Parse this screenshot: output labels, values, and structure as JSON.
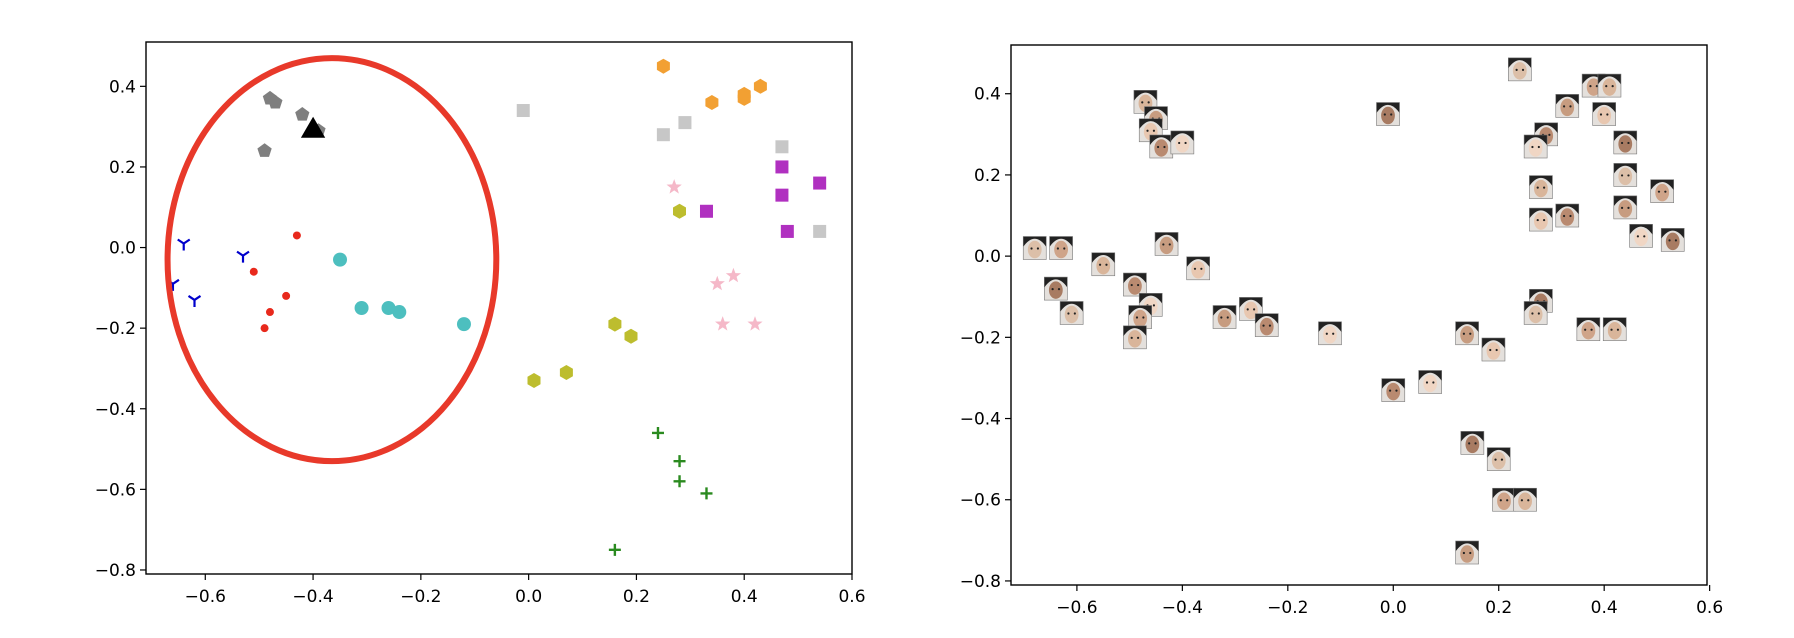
{
  "chart_data": [
    {
      "type": "scatter",
      "xlim": [
        -0.71,
        0.6
      ],
      "ylim": [
        -0.81,
        0.51
      ],
      "xticks": [
        -0.6,
        -0.4,
        -0.2,
        0.0,
        0.2,
        0.4,
        0.6
      ],
      "xtick_labels": [
        "−0.6",
        "−0.4",
        "−0.2",
        "0.0",
        "0.2",
        "0.4",
        "0.6"
      ],
      "yticks": [
        -0.8,
        -0.6,
        -0.4,
        -0.2,
        0.0,
        0.2,
        0.4
      ],
      "ytick_labels": [
        "−0.8",
        "−0.6",
        "−0.4",
        "−0.2",
        "0.0",
        "0.2",
        "0.4"
      ],
      "grid": false,
      "series": [
        {
          "marker": "pentagon",
          "color": "#7f7f7f",
          "points": [
            [
              -0.48,
              0.37
            ],
            [
              -0.47,
              0.36
            ],
            [
              -0.42,
              0.33
            ],
            [
              -0.49,
              0.24
            ],
            [
              -0.39,
              0.29
            ]
          ]
        },
        {
          "marker": "triangle",
          "color": "#000000",
          "points": [
            [
              -0.4,
              0.29
            ]
          ]
        },
        {
          "marker": "tri_down",
          "color": "#0000cc",
          "points": [
            [
              -0.64,
              0.01
            ],
            [
              -0.53,
              -0.02
            ],
            [
              -0.66,
              -0.09
            ],
            [
              -0.62,
              -0.13
            ]
          ]
        },
        {
          "marker": "dot",
          "color": "#e8291c",
          "points": [
            [
              -0.43,
              0.03
            ],
            [
              -0.51,
              -0.06
            ],
            [
              -0.45,
              -0.12
            ],
            [
              -0.48,
              -0.16
            ],
            [
              -0.49,
              -0.2
            ]
          ]
        },
        {
          "marker": "circle",
          "color": "#4dbfbf",
          "points": [
            [
              -0.35,
              -0.03
            ],
            [
              -0.31,
              -0.15
            ],
            [
              -0.26,
              -0.15
            ],
            [
              -0.24,
              -0.16
            ],
            [
              -0.12,
              -0.19
            ]
          ]
        },
        {
          "marker": "hexagon",
          "color": "#f2a033",
          "points": [
            [
              0.25,
              0.45
            ],
            [
              0.43,
              0.4
            ],
            [
              0.4,
              0.38
            ],
            [
              0.4,
              0.37
            ],
            [
              0.34,
              0.36
            ]
          ]
        },
        {
          "marker": "square",
          "color": "#c7c7c7",
          "points": [
            [
              -0.01,
              0.34
            ],
            [
              0.29,
              0.31
            ],
            [
              0.25,
              0.28
            ],
            [
              0.47,
              0.25
            ],
            [
              0.54,
              0.04
            ]
          ]
        },
        {
          "marker": "square",
          "color": "#b030c0",
          "points": [
            [
              0.47,
              0.2
            ],
            [
              0.54,
              0.16
            ],
            [
              0.47,
              0.13
            ],
            [
              0.33,
              0.09
            ],
            [
              0.48,
              0.04
            ]
          ]
        },
        {
          "marker": "star",
          "color": "#f5b8c8",
          "points": [
            [
              0.27,
              0.15
            ],
            [
              0.38,
              -0.07
            ],
            [
              0.35,
              -0.09
            ],
            [
              0.36,
              -0.19
            ],
            [
              0.42,
              -0.19
            ]
          ]
        },
        {
          "marker": "hexagon",
          "color": "#bdbd2e",
          "points": [
            [
              0.28,
              0.09
            ],
            [
              0.16,
              -0.19
            ],
            [
              0.19,
              -0.22
            ],
            [
              0.07,
              -0.31
            ],
            [
              0.01,
              -0.33
            ]
          ]
        },
        {
          "marker": "plus",
          "color": "#2a8a1f",
          "points": [
            [
              0.24,
              -0.46
            ],
            [
              0.28,
              -0.53
            ],
            [
              0.28,
              -0.58
            ],
            [
              0.33,
              -0.61
            ],
            [
              0.16,
              -0.75
            ]
          ]
        }
      ],
      "annotations": [
        {
          "type": "ellipse",
          "color": "#e8392a",
          "center": [
            -0.365,
            -0.03
          ],
          "half_width": 0.305,
          "half_height": 0.5
        }
      ]
    },
    {
      "type": "scatter",
      "xlim": [
        -0.725,
        0.595
      ],
      "ylim": [
        -0.81,
        0.52
      ],
      "xticks": [
        -0.6,
        -0.4,
        -0.2,
        0.0,
        0.2,
        0.4,
        0.6
      ],
      "xtick_labels": [
        "−0.6",
        "−0.4",
        "−0.2",
        "0.0",
        "0.2",
        "0.4",
        "0.6"
      ],
      "yticks": [
        -0.8,
        -0.6,
        -0.4,
        -0.2,
        0.0,
        0.2,
        0.4
      ],
      "ytick_labels": [
        "−0.8",
        "−0.6",
        "−0.4",
        "−0.2",
        "0.0",
        "0.2",
        "0.4"
      ],
      "grid": false,
      "marker": "face-thumbnail",
      "points": [
        [
          -0.47,
          0.38
        ],
        [
          -0.45,
          0.34
        ],
        [
          -0.46,
          0.31
        ],
        [
          -0.44,
          0.27
        ],
        [
          -0.4,
          0.28
        ],
        [
          -0.01,
          0.35
        ],
        [
          0.24,
          0.46
        ],
        [
          0.38,
          0.42
        ],
        [
          0.41,
          0.42
        ],
        [
          0.33,
          0.37
        ],
        [
          0.4,
          0.35
        ],
        [
          0.29,
          0.3
        ],
        [
          0.27,
          0.27
        ],
        [
          0.44,
          0.28
        ],
        [
          0.44,
          0.2
        ],
        [
          0.51,
          0.16
        ],
        [
          0.28,
          0.17
        ],
        [
          0.44,
          0.12
        ],
        [
          0.28,
          0.09
        ],
        [
          0.33,
          0.1
        ],
        [
          0.47,
          0.05
        ],
        [
          0.53,
          0.04
        ],
        [
          -0.68,
          0.02
        ],
        [
          -0.63,
          0.02
        ],
        [
          -0.55,
          -0.02
        ],
        [
          -0.43,
          0.03
        ],
        [
          -0.37,
          -0.03
        ],
        [
          -0.49,
          -0.07
        ],
        [
          -0.46,
          -0.12
        ],
        [
          -0.64,
          -0.08
        ],
        [
          -0.61,
          -0.14
        ],
        [
          -0.48,
          -0.15
        ],
        [
          -0.49,
          -0.2
        ],
        [
          -0.32,
          -0.15
        ],
        [
          -0.27,
          -0.13
        ],
        [
          -0.24,
          -0.17
        ],
        [
          -0.12,
          -0.19
        ],
        [
          0.28,
          -0.11
        ],
        [
          0.27,
          -0.14
        ],
        [
          0.37,
          -0.18
        ],
        [
          0.42,
          -0.18
        ],
        [
          0.14,
          -0.19
        ],
        [
          0.19,
          -0.23
        ],
        [
          0.0,
          -0.33
        ],
        [
          0.07,
          -0.31
        ],
        [
          0.15,
          -0.46
        ],
        [
          0.2,
          -0.5
        ],
        [
          0.21,
          -0.6
        ],
        [
          0.25,
          -0.6
        ],
        [
          0.14,
          -0.73
        ]
      ]
    }
  ]
}
